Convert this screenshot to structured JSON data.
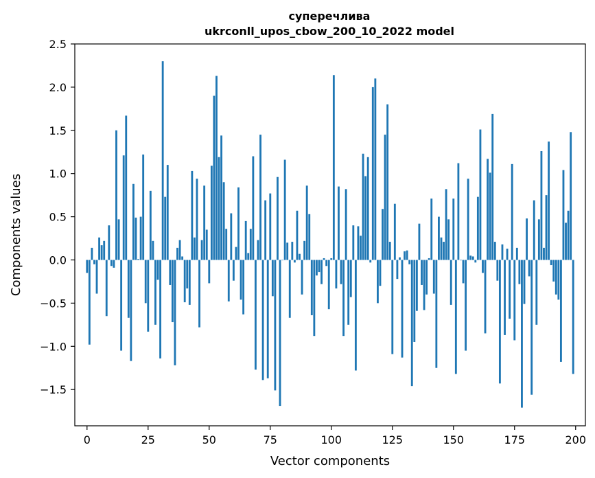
{
  "chart_data": {
    "type": "bar",
    "title": "суперечлива",
    "subtitle": "ukrconll_upos_cbow_200_10_2022 model",
    "xlabel": "Vector components",
    "ylabel": "Components values",
    "xlim": [
      -5,
      204
    ],
    "ylim": [
      -1.92,
      2.5
    ],
    "x_ticks": [
      0,
      25,
      50,
      75,
      100,
      125,
      150,
      175,
      200
    ],
    "y_ticks": [
      -1.5,
      -1.0,
      -0.5,
      0.0,
      0.5,
      1.0,
      1.5,
      2.0,
      2.5
    ],
    "y_tick_labels": [
      "−1.5",
      "−1.0",
      "−0.5",
      "0.0",
      "0.5",
      "1.0",
      "1.5",
      "2.0",
      "2.5"
    ],
    "grid": false,
    "bar_color": "#1f77b4",
    "values": [
      -0.15,
      -0.98,
      0.14,
      -0.05,
      -0.39,
      0.26,
      0.17,
      0.22,
      -0.65,
      0.4,
      -0.07,
      -0.09,
      1.5,
      0.47,
      -1.05,
      1.21,
      1.67,
      -0.67,
      -1.17,
      0.88,
      0.49,
      0.01,
      0.5,
      1.22,
      -0.5,
      -0.83,
      0.8,
      0.22,
      -0.75,
      -0.23,
      -1.14,
      2.3,
      0.73,
      1.1,
      -0.29,
      -0.72,
      -1.22,
      0.14,
      0.23,
      0.04,
      -0.49,
      -0.33,
      -0.52,
      1.03,
      0.26,
      0.94,
      -0.78,
      0.23,
      0.86,
      0.35,
      -0.27,
      1.09,
      1.9,
      2.13,
      1.19,
      1.44,
      0.9,
      0.36,
      -0.48,
      0.54,
      -0.24,
      0.15,
      0.84,
      -0.46,
      -0.63,
      0.45,
      0.08,
      0.36,
      1.2,
      -1.27,
      0.23,
      1.45,
      -1.39,
      0.69,
      -1.37,
      0.77,
      -0.42,
      -1.51,
      0.96,
      -1.69,
      0.0,
      1.16,
      0.2,
      -0.67,
      0.21,
      -0.03,
      0.57,
      0.07,
      -0.4,
      0.22,
      0.86,
      0.53,
      -0.64,
      -0.88,
      -0.18,
      -0.14,
      -0.28,
      0.02,
      -0.07,
      -0.57,
      0.02,
      2.14,
      -0.33,
      0.85,
      -0.28,
      -0.88,
      0.82,
      -0.75,
      -0.43,
      0.4,
      -1.28,
      0.39,
      0.28,
      1.23,
      0.97,
      1.19,
      -0.03,
      2.0,
      2.1,
      -0.5,
      -0.3,
      0.59,
      1.45,
      1.8,
      0.21,
      -1.09,
      0.65,
      -0.22,
      0.03,
      -1.13,
      0.1,
      0.11,
      -0.05,
      -1.46,
      -0.95,
      -0.59,
      0.42,
      -0.29,
      -0.58,
      -0.4,
      0.02,
      0.71,
      -0.39,
      -1.25,
      0.5,
      0.26,
      0.21,
      0.82,
      0.47,
      -0.52,
      0.71,
      -1.32,
      1.12,
      0.0,
      -0.27,
      -1.05,
      0.94,
      0.05,
      0.04,
      -0.03,
      0.73,
      1.51,
      -0.15,
      -0.85,
      1.17,
      1.01,
      1.69,
      0.21,
      -0.24,
      -1.43,
      0.18,
      -0.87,
      0.13,
      -0.68,
      1.11,
      -0.93,
      0.14,
      -0.28,
      -1.71,
      -0.51,
      0.48,
      -0.19,
      -1.56,
      0.69,
      -0.75,
      0.47,
      1.26,
      0.14,
      0.75,
      1.37,
      -0.06,
      -0.25,
      -0.4,
      -0.46,
      -1.18,
      1.04,
      0.43,
      0.57,
      1.48,
      -1.32
    ]
  }
}
